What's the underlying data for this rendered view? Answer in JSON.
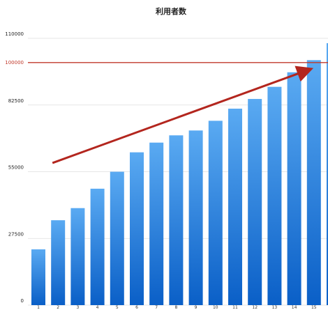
{
  "chart_data": {
    "type": "bar",
    "title": "利用者数",
    "xlabel": "",
    "ylabel": "",
    "ylim": [
      0,
      110000
    ],
    "yticks": [
      0,
      27500,
      55000,
      82500,
      110000
    ],
    "grid": true,
    "legend": "none",
    "categories": [
      "1",
      "2",
      "3",
      "4",
      "5",
      "6",
      "7",
      "8",
      "9",
      "10",
      "11",
      "12",
      "13",
      "14",
      "15",
      "16"
    ],
    "values": [
      23000,
      35000,
      40000,
      48000,
      55000,
      63000,
      67000,
      70000,
      72000,
      76000,
      81000,
      85000,
      90000,
      96000,
      101000,
      108000
    ],
    "reference_line": {
      "value": 100000,
      "label": "100000",
      "color": "#c0392b"
    },
    "trend_arrow": {
      "from": {
        "x": 1,
        "y": 50000
      },
      "to": {
        "x": 14,
        "y": 100000
      },
      "color": "#b3261e"
    },
    "bar_color_top": "#5aaaf2",
    "bar_color_bottom": "#0a5fc7"
  }
}
